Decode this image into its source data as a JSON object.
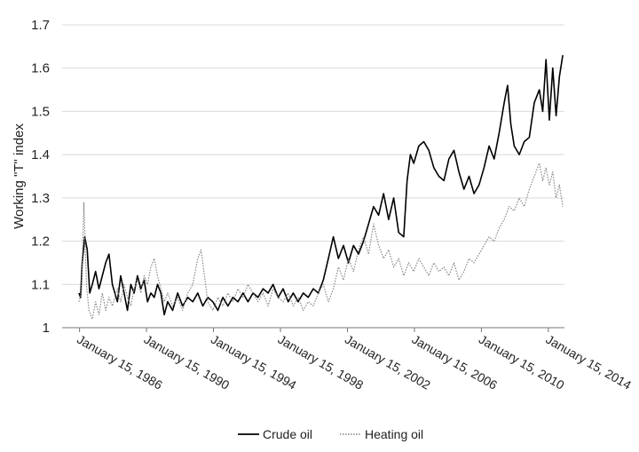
{
  "chart_data": {
    "type": "line",
    "ylabel": "Working  \"T\" index",
    "xlabel": "",
    "ylim": [
      1,
      1.7
    ],
    "yticks": [
      1,
      1.1,
      1.2,
      1.3,
      1.4,
      1.5,
      1.6,
      1.7
    ],
    "xlim": [
      1985.0,
      2015.0
    ],
    "xticks": [
      {
        "label": "January 15, 1986",
        "x": 1986.04
      },
      {
        "label": "January 15, 1990",
        "x": 1990.04
      },
      {
        "label": "January 15, 1994",
        "x": 1994.04
      },
      {
        "label": "January 15, 1998",
        "x": 1998.04
      },
      {
        "label": "January 15, 2002",
        "x": 2002.04
      },
      {
        "label": "January 15, 2006",
        "x": 2006.04
      },
      {
        "label": "January 15, 2010",
        "x": 2010.04
      },
      {
        "label": "January 15, 2014",
        "x": 2014.04
      }
    ],
    "grid": "horizontal",
    "legend_position": "bottom",
    "series": [
      {
        "name": "Crude oil",
        "style": "solid",
        "color": "#000000",
        "points": [
          [
            1986.0,
            1.08
          ],
          [
            1986.1,
            1.07
          ],
          [
            1986.2,
            1.15
          ],
          [
            1986.35,
            1.21
          ],
          [
            1986.5,
            1.18
          ],
          [
            1986.65,
            1.08
          ],
          [
            1986.8,
            1.1
          ],
          [
            1987.0,
            1.13
          ],
          [
            1987.2,
            1.09
          ],
          [
            1987.4,
            1.12
          ],
          [
            1987.6,
            1.15
          ],
          [
            1987.8,
            1.17
          ],
          [
            1988.0,
            1.1
          ],
          [
            1988.3,
            1.06
          ],
          [
            1988.5,
            1.12
          ],
          [
            1988.7,
            1.08
          ],
          [
            1988.9,
            1.04
          ],
          [
            1989.1,
            1.1
          ],
          [
            1989.3,
            1.08
          ],
          [
            1989.5,
            1.12
          ],
          [
            1989.7,
            1.09
          ],
          [
            1989.9,
            1.11
          ],
          [
            1990.1,
            1.06
          ],
          [
            1990.3,
            1.08
          ],
          [
            1990.5,
            1.07
          ],
          [
            1990.7,
            1.1
          ],
          [
            1990.9,
            1.08
          ],
          [
            1991.1,
            1.03
          ],
          [
            1991.3,
            1.06
          ],
          [
            1991.6,
            1.04
          ],
          [
            1991.9,
            1.08
          ],
          [
            1992.2,
            1.05
          ],
          [
            1992.5,
            1.07
          ],
          [
            1992.8,
            1.06
          ],
          [
            1993.1,
            1.08
          ],
          [
            1993.4,
            1.05
          ],
          [
            1993.7,
            1.07
          ],
          [
            1994.0,
            1.06
          ],
          [
            1994.3,
            1.04
          ],
          [
            1994.6,
            1.07
          ],
          [
            1994.9,
            1.05
          ],
          [
            1995.2,
            1.07
          ],
          [
            1995.5,
            1.06
          ],
          [
            1995.8,
            1.08
          ],
          [
            1996.1,
            1.06
          ],
          [
            1996.4,
            1.08
          ],
          [
            1996.7,
            1.07
          ],
          [
            1997.0,
            1.09
          ],
          [
            1997.3,
            1.08
          ],
          [
            1997.6,
            1.1
          ],
          [
            1997.9,
            1.07
          ],
          [
            1998.2,
            1.09
          ],
          [
            1998.5,
            1.06
          ],
          [
            1998.8,
            1.08
          ],
          [
            1999.1,
            1.06
          ],
          [
            1999.4,
            1.08
          ],
          [
            1999.7,
            1.07
          ],
          [
            2000.0,
            1.09
          ],
          [
            2000.3,
            1.08
          ],
          [
            2000.6,
            1.11
          ],
          [
            2000.9,
            1.16
          ],
          [
            2001.2,
            1.21
          ],
          [
            2001.5,
            1.16
          ],
          [
            2001.8,
            1.19
          ],
          [
            2002.1,
            1.15
          ],
          [
            2002.4,
            1.19
          ],
          [
            2002.7,
            1.17
          ],
          [
            2003.0,
            1.2
          ],
          [
            2003.3,
            1.24
          ],
          [
            2003.6,
            1.28
          ],
          [
            2003.9,
            1.26
          ],
          [
            2004.2,
            1.31
          ],
          [
            2004.5,
            1.25
          ],
          [
            2004.8,
            1.3
          ],
          [
            2005.1,
            1.22
          ],
          [
            2005.4,
            1.21
          ],
          [
            2005.6,
            1.34
          ],
          [
            2005.8,
            1.4
          ],
          [
            2006.0,
            1.38
          ],
          [
            2006.3,
            1.42
          ],
          [
            2006.6,
            1.43
          ],
          [
            2006.9,
            1.41
          ],
          [
            2007.2,
            1.37
          ],
          [
            2007.5,
            1.35
          ],
          [
            2007.8,
            1.34
          ],
          [
            2008.1,
            1.39
          ],
          [
            2008.4,
            1.41
          ],
          [
            2008.7,
            1.36
          ],
          [
            2009.0,
            1.32
          ],
          [
            2009.3,
            1.35
          ],
          [
            2009.6,
            1.31
          ],
          [
            2009.9,
            1.33
          ],
          [
            2010.2,
            1.37
          ],
          [
            2010.5,
            1.42
          ],
          [
            2010.8,
            1.39
          ],
          [
            2011.1,
            1.45
          ],
          [
            2011.4,
            1.52
          ],
          [
            2011.6,
            1.56
          ],
          [
            2011.8,
            1.47
          ],
          [
            2012.0,
            1.42
          ],
          [
            2012.3,
            1.4
          ],
          [
            2012.6,
            1.43
          ],
          [
            2012.9,
            1.44
          ],
          [
            2013.2,
            1.52
          ],
          [
            2013.5,
            1.55
          ],
          [
            2013.7,
            1.5
          ],
          [
            2013.9,
            1.62
          ],
          [
            2014.1,
            1.48
          ],
          [
            2014.3,
            1.6
          ],
          [
            2014.5,
            1.49
          ],
          [
            2014.7,
            1.58
          ],
          [
            2014.9,
            1.63
          ]
        ]
      },
      {
        "name": "Heating oil",
        "style": "dotted",
        "color": "#888888",
        "points": [
          [
            1986.0,
            1.06
          ],
          [
            1986.15,
            1.08
          ],
          [
            1986.3,
            1.29
          ],
          [
            1986.45,
            1.1
          ],
          [
            1986.6,
            1.04
          ],
          [
            1986.8,
            1.02
          ],
          [
            1987.0,
            1.06
          ],
          [
            1987.2,
            1.03
          ],
          [
            1987.4,
            1.08
          ],
          [
            1987.6,
            1.04
          ],
          [
            1987.8,
            1.07
          ],
          [
            1988.0,
            1.05
          ],
          [
            1988.3,
            1.09
          ],
          [
            1988.5,
            1.06
          ],
          [
            1988.7,
            1.1
          ],
          [
            1988.9,
            1.07
          ],
          [
            1989.1,
            1.05
          ],
          [
            1989.3,
            1.09
          ],
          [
            1989.5,
            1.11
          ],
          [
            1989.7,
            1.08
          ],
          [
            1989.9,
            1.12
          ],
          [
            1990.1,
            1.1
          ],
          [
            1990.3,
            1.14
          ],
          [
            1990.5,
            1.16
          ],
          [
            1990.7,
            1.12
          ],
          [
            1990.9,
            1.09
          ],
          [
            1991.1,
            1.06
          ],
          [
            1991.3,
            1.08
          ],
          [
            1991.6,
            1.05
          ],
          [
            1991.9,
            1.07
          ],
          [
            1992.2,
            1.04
          ],
          [
            1992.5,
            1.08
          ],
          [
            1992.8,
            1.1
          ],
          [
            1993.1,
            1.16
          ],
          [
            1993.3,
            1.18
          ],
          [
            1993.5,
            1.12
          ],
          [
            1993.7,
            1.06
          ],
          [
            1994.0,
            1.04
          ],
          [
            1994.3,
            1.07
          ],
          [
            1994.6,
            1.05
          ],
          [
            1994.9,
            1.08
          ],
          [
            1995.2,
            1.06
          ],
          [
            1995.5,
            1.09
          ],
          [
            1995.8,
            1.07
          ],
          [
            1996.1,
            1.1
          ],
          [
            1996.4,
            1.08
          ],
          [
            1996.7,
            1.06
          ],
          [
            1997.0,
            1.08
          ],
          [
            1997.3,
            1.05
          ],
          [
            1997.6,
            1.09
          ],
          [
            1997.9,
            1.07
          ],
          [
            1998.2,
            1.06
          ],
          [
            1998.5,
            1.08
          ],
          [
            1998.8,
            1.05
          ],
          [
            1999.1,
            1.07
          ],
          [
            1999.4,
            1.04
          ],
          [
            1999.7,
            1.06
          ],
          [
            2000.0,
            1.05
          ],
          [
            2000.3,
            1.08
          ],
          [
            2000.6,
            1.1
          ],
          [
            2000.9,
            1.06
          ],
          [
            2001.2,
            1.09
          ],
          [
            2001.5,
            1.14
          ],
          [
            2001.8,
            1.11
          ],
          [
            2002.1,
            1.16
          ],
          [
            2002.4,
            1.13
          ],
          [
            2002.7,
            1.18
          ],
          [
            2003.0,
            1.21
          ],
          [
            2003.3,
            1.17
          ],
          [
            2003.6,
            1.24
          ],
          [
            2003.9,
            1.19
          ],
          [
            2004.2,
            1.16
          ],
          [
            2004.5,
            1.18
          ],
          [
            2004.8,
            1.14
          ],
          [
            2005.1,
            1.16
          ],
          [
            2005.4,
            1.12
          ],
          [
            2005.7,
            1.15
          ],
          [
            2006.0,
            1.13
          ],
          [
            2006.3,
            1.16
          ],
          [
            2006.6,
            1.14
          ],
          [
            2006.9,
            1.12
          ],
          [
            2007.2,
            1.15
          ],
          [
            2007.5,
            1.13
          ],
          [
            2007.8,
            1.14
          ],
          [
            2008.1,
            1.12
          ],
          [
            2008.4,
            1.15
          ],
          [
            2008.7,
            1.11
          ],
          [
            2009.0,
            1.13
          ],
          [
            2009.3,
            1.16
          ],
          [
            2009.6,
            1.15
          ],
          [
            2009.9,
            1.17
          ],
          [
            2010.2,
            1.19
          ],
          [
            2010.5,
            1.21
          ],
          [
            2010.8,
            1.2
          ],
          [
            2011.1,
            1.23
          ],
          [
            2011.4,
            1.25
          ],
          [
            2011.7,
            1.28
          ],
          [
            2012.0,
            1.27
          ],
          [
            2012.3,
            1.3
          ],
          [
            2012.6,
            1.28
          ],
          [
            2012.9,
            1.32
          ],
          [
            2013.2,
            1.35
          ],
          [
            2013.5,
            1.38
          ],
          [
            2013.7,
            1.34
          ],
          [
            2013.9,
            1.37
          ],
          [
            2014.1,
            1.33
          ],
          [
            2014.3,
            1.36
          ],
          [
            2014.5,
            1.3
          ],
          [
            2014.7,
            1.33
          ],
          [
            2014.9,
            1.28
          ]
        ]
      }
    ]
  }
}
